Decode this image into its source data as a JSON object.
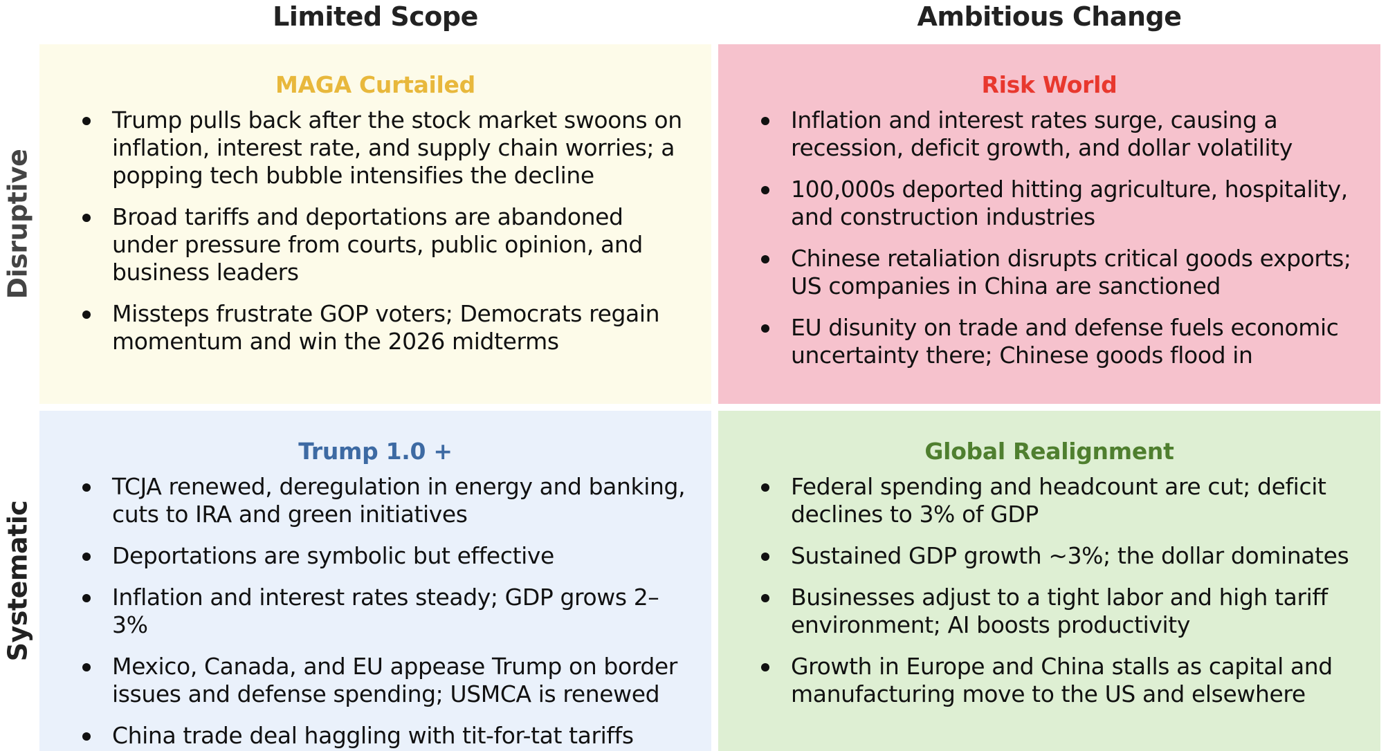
{
  "headers": {
    "col_limited": "Limited Scope",
    "col_ambitious": "Ambitious Change",
    "row_disruptive": "Disruptive",
    "row_systematic": "Systematic"
  },
  "quadrants": {
    "maga_curtailed": {
      "title": "MAGA Curtailed",
      "title_color": "#e8b83c",
      "bg_color": "#fdfbe9",
      "bullets": [
        "Trump pulls back after the stock market swoons on inflation, interest rate, and supply chain worries; a popping tech bubble intensifies the decline",
        "Broad tariffs and deportations are abandoned under pressure from courts, public opinion, and business leaders",
        "Missteps frustrate GOP voters; Democrats regain momentum and win the 2026 midterms"
      ]
    },
    "risk_world": {
      "title": "Risk World",
      "title_color": "#e8382e",
      "bg_color": "#f6c2cd",
      "bullets": [
        "Inflation and interest rates surge, causing a recession, deficit growth, and dollar volatility",
        "100,000s deported hitting agriculture, hospitality, and construction industries",
        "Chinese retaliation disrupts critical goods exports; US companies in China are sanctioned",
        "EU disunity on trade and defense fuels economic uncertainty there; Chinese goods flood in"
      ]
    },
    "trump_plus": {
      "title": "Trump 1.0 +",
      "title_color": "#3d6aa3",
      "bg_color": "#eaf1fb",
      "bullets": [
        "TCJA renewed, deregulation in energy and banking, cuts to IRA and green initiatives",
        "Deportations are symbolic but effective",
        "Inflation and interest rates steady; GDP grows 2–3%",
        "Mexico, Canada, and EU appease Trump on border issues and defense spending; USMCA is renewed",
        "China trade deal haggling with tit-for-tat tariffs"
      ]
    },
    "global_realignment": {
      "title": "Global Realignment",
      "title_color": "#4f7f2f",
      "bg_color": "#deefd3",
      "bullets": [
        "Federal spending and headcount are cut; deficit declines to 3% of GDP",
        "Sustained GDP growth ~3%; the dollar dominates",
        "Businesses adjust to a tight labor and high tariff environment; AI boosts productivity",
        "Growth in Europe and China stalls as capital and manufacturing move to the US and elsewhere"
      ]
    }
  }
}
